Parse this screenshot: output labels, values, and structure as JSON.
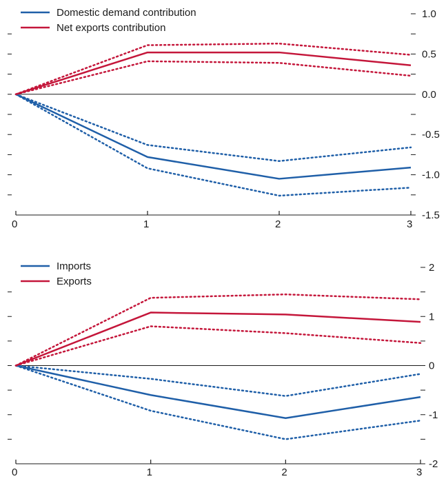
{
  "colors": {
    "blue": "#1f5fa8",
    "red": "#c4163a",
    "axis": "#1a1a1a"
  },
  "chart_data": [
    {
      "type": "line",
      "x": [
        0,
        1,
        2,
        3
      ],
      "x_ticks": [
        "0",
        "1",
        "2",
        "3"
      ],
      "ylim": [
        -1.5,
        1.0
      ],
      "y_ticks": [
        1.0,
        0.5,
        0.0,
        -0.5,
        -1.0,
        -1.5
      ],
      "y_tick_labels": [
        "1.0",
        "0.5",
        "0.0",
        "-0.5",
        "-1.0",
        "-1.5"
      ],
      "y_axis_side": "right",
      "legend": "top-left",
      "grid": false,
      "series": [
        {
          "name": "Domestic demand contribution",
          "color": "#1f5fa8",
          "values": [
            0,
            -0.78,
            -1.05,
            -0.91
          ],
          "upper": [
            0,
            -0.63,
            -0.83,
            -0.66
          ],
          "lower": [
            0,
            -0.92,
            -1.26,
            -1.16
          ]
        },
        {
          "name": "Net exports contribution",
          "color": "#c4163a",
          "values": [
            0,
            0.52,
            0.52,
            0.36
          ],
          "upper": [
            0,
            0.61,
            0.63,
            0.49
          ],
          "lower": [
            0,
            0.41,
            0.39,
            0.23
          ]
        }
      ]
    },
    {
      "type": "line",
      "x": [
        0,
        1,
        2,
        3
      ],
      "x_ticks": [
        "0",
        "1",
        "2",
        "3"
      ],
      "ylim": [
        -2,
        2
      ],
      "y_ticks": [
        2,
        1,
        0,
        -1,
        -2
      ],
      "y_tick_labels": [
        "2",
        "1",
        "0",
        "-1",
        "-2"
      ],
      "y_axis_side": "right",
      "legend": "top-left",
      "grid": false,
      "series": [
        {
          "name": "Imports",
          "color": "#1f5fa8",
          "values": [
            0,
            -0.6,
            -1.07,
            -0.64
          ],
          "upper": [
            0,
            -0.27,
            -0.62,
            -0.17
          ],
          "lower": [
            0,
            -0.92,
            -1.5,
            -1.12
          ]
        },
        {
          "name": "Exports",
          "color": "#c4163a",
          "values": [
            0,
            1.08,
            1.04,
            0.89
          ],
          "upper": [
            0,
            1.38,
            1.45,
            1.35
          ],
          "lower": [
            0,
            0.8,
            0.66,
            0.46
          ]
        }
      ]
    }
  ]
}
